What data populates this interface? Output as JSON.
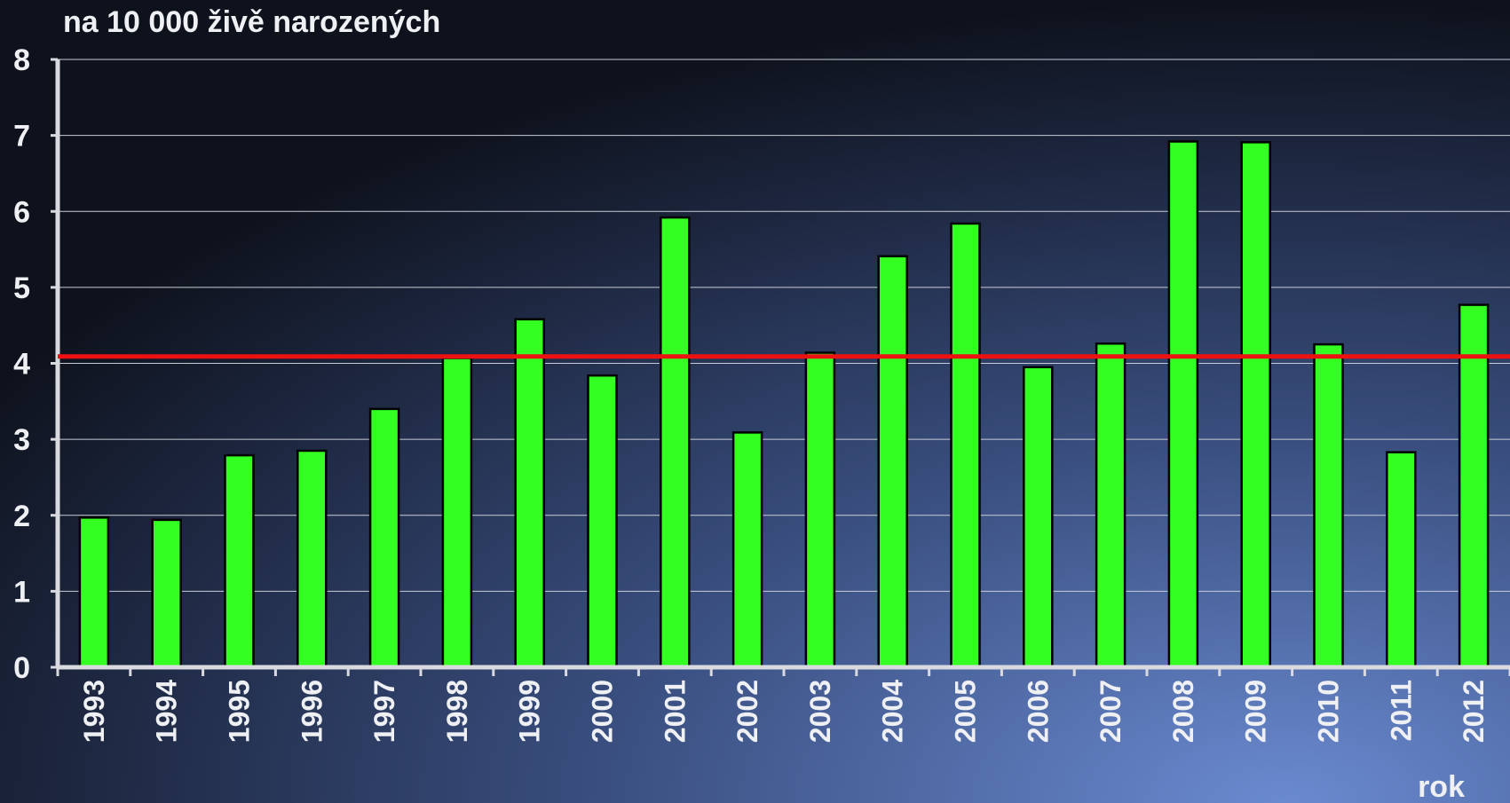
{
  "chart_data": {
    "type": "bar",
    "y_label": "na 10 000 živě narozených",
    "x_label": "rok",
    "categories": [
      "1993",
      "1994",
      "1995",
      "1996",
      "1997",
      "1998",
      "1999",
      "2000",
      "2001",
      "2002",
      "2003",
      "2004",
      "2005",
      "2006",
      "2007",
      "2008",
      "2009",
      "2010",
      "2011",
      "2012"
    ],
    "values": [
      1.97,
      1.94,
      2.79,
      2.85,
      3.4,
      4.07,
      4.58,
      3.84,
      5.92,
      3.09,
      4.14,
      5.41,
      5.84,
      3.95,
      4.26,
      6.92,
      6.91,
      4.25,
      2.83,
      4.77
    ],
    "color": "#33ff22",
    "reference_line": {
      "value": 4.09,
      "color": "#ee1111"
    },
    "ylim": [
      0,
      8
    ],
    "yticks": [
      0,
      1,
      2,
      3,
      4,
      5,
      6,
      7,
      8
    ],
    "grid": true
  }
}
